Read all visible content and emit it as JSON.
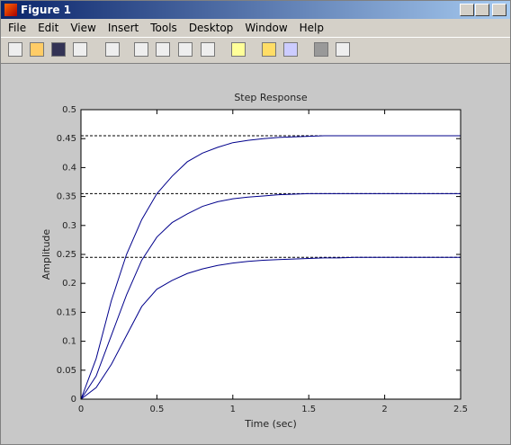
{
  "window": {
    "title": "Figure 1"
  },
  "menu": {
    "items": [
      "File",
      "Edit",
      "View",
      "Insert",
      "Tools",
      "Desktop",
      "Window",
      "Help"
    ]
  },
  "chart_data": {
    "type": "line",
    "title": "Step Response",
    "x_label": "Time (sec)",
    "y_label": "Amplitude",
    "x": [
      0,
      0.1,
      0.2,
      0.3,
      0.4,
      0.5,
      0.6,
      0.7,
      0.8,
      0.9,
      1,
      1.1,
      1.2,
      1.3,
      1.4,
      1.5,
      1.6,
      1.7,
      1.8,
      1.9,
      2,
      2.1,
      2.2,
      2.3,
      2.4,
      2.5
    ],
    "series": [
      {
        "color": "#00008b",
        "values": [
          0,
          0.07,
          0.17,
          0.25,
          0.31,
          0.355,
          0.385,
          0.41,
          0.425,
          0.435,
          0.443,
          0.447,
          0.45,
          0.452,
          0.453,
          0.454,
          0.455,
          0.455,
          0.455,
          0.455,
          0.455,
          0.455,
          0.455,
          0.455,
          0.455,
          0.455
        ]
      },
      {
        "color": "#00008b",
        "values": [
          0,
          0.04,
          0.11,
          0.18,
          0.24,
          0.28,
          0.305,
          0.32,
          0.333,
          0.341,
          0.346,
          0.349,
          0.351,
          0.353,
          0.354,
          0.355,
          0.355,
          0.355,
          0.355,
          0.355,
          0.355,
          0.355,
          0.355,
          0.355,
          0.355,
          0.355
        ]
      },
      {
        "color": "#00008b",
        "values": [
          0,
          0.02,
          0.06,
          0.11,
          0.16,
          0.19,
          0.205,
          0.217,
          0.225,
          0.231,
          0.235,
          0.238,
          0.24,
          0.241,
          0.242,
          0.243,
          0.244,
          0.244,
          0.245,
          0.245,
          0.245,
          0.245,
          0.245,
          0.245,
          0.245,
          0.245
        ]
      }
    ],
    "reference_lines": [
      0.455,
      0.355,
      0.245
    ],
    "xlim": [
      0,
      2.5
    ],
    "xticks": [
      0,
      0.5,
      1,
      1.5,
      2,
      2.5
    ],
    "ylim": [
      0,
      0.5
    ],
    "yticks": [
      0,
      0.05,
      0.1,
      0.15,
      0.2,
      0.25,
      0.3,
      0.35,
      0.4,
      0.45,
      0.5
    ]
  }
}
